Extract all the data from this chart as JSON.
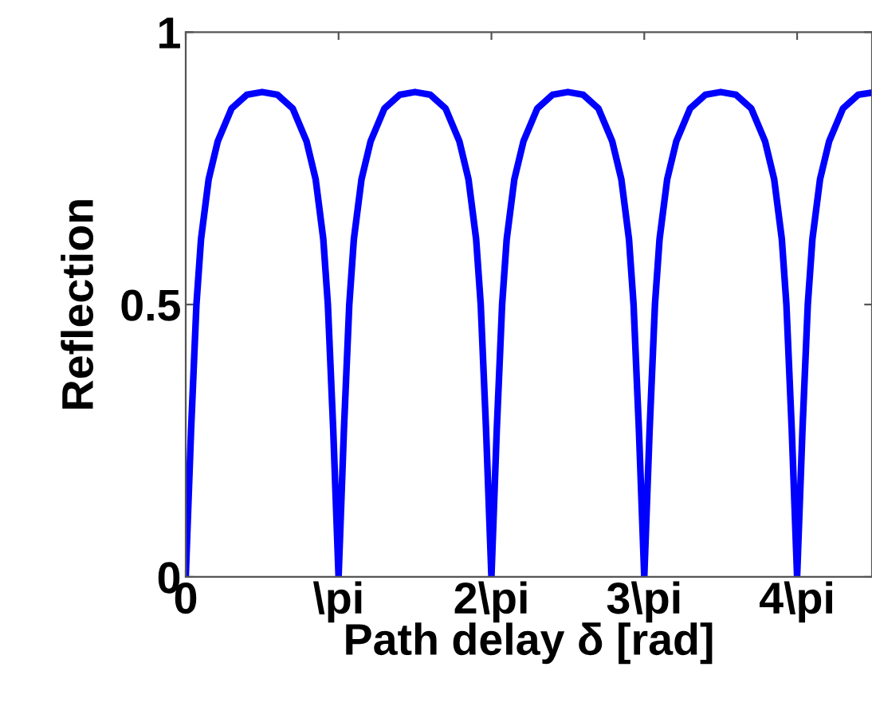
{
  "chart_data": {
    "type": "line",
    "xlabel": "Path delay δ [rad]",
    "ylabel": "Reflection",
    "xlim": [
      0,
      4.49
    ],
    "ylim": [
      0,
      1
    ],
    "xticks": [
      0,
      {
        "value": 1,
        "label": "\\pi"
      },
      {
        "value": 2,
        "label": "2\\pi"
      },
      {
        "value": 3,
        "label": "3\\pi"
      },
      {
        "value": 4,
        "label": "4\\pi"
      }
    ],
    "yticks": [
      0,
      0.5,
      1
    ],
    "grid": false,
    "marker": "none",
    "line_style": "solid",
    "series": [
      {
        "color": "#0000ff",
        "x": [
          0,
          0.035,
          0.07,
          0.1,
          0.15,
          0.21,
          0.3,
          0.4,
          0.5,
          0.6,
          0.7,
          0.79,
          0.85,
          0.9,
          0.93,
          0.965,
          1,
          1.035,
          1.07,
          1.1,
          1.15,
          1.21,
          1.3,
          1.4,
          1.5,
          1.6,
          1.7,
          1.79,
          1.85,
          1.9,
          1.93,
          1.965,
          2,
          2.035,
          2.07,
          2.1,
          2.15,
          2.21,
          2.3,
          2.4,
          2.5,
          2.6,
          2.7,
          2.79,
          2.85,
          2.9,
          2.93,
          2.965,
          3,
          3.035,
          3.07,
          3.1,
          3.15,
          3.21,
          3.3,
          3.4,
          3.5,
          3.6,
          3.7,
          3.79,
          3.85,
          3.9,
          3.93,
          3.965,
          4,
          4.035,
          4.07,
          4.1,
          4.15,
          4.21,
          4.3,
          4.4,
          4.49
        ],
        "values": [
          0,
          0.27,
          0.5,
          0.62,
          0.73,
          0.8,
          0.86,
          0.885,
          0.89,
          0.885,
          0.86,
          0.8,
          0.73,
          0.62,
          0.5,
          0.27,
          0,
          0.27,
          0.5,
          0.62,
          0.73,
          0.8,
          0.86,
          0.885,
          0.89,
          0.885,
          0.86,
          0.8,
          0.73,
          0.62,
          0.5,
          0.27,
          0,
          0.27,
          0.5,
          0.62,
          0.73,
          0.8,
          0.86,
          0.885,
          0.89,
          0.885,
          0.86,
          0.8,
          0.73,
          0.62,
          0.5,
          0.27,
          0,
          0.27,
          0.5,
          0.62,
          0.73,
          0.8,
          0.86,
          0.885,
          0.89,
          0.885,
          0.86,
          0.8,
          0.73,
          0.62,
          0.5,
          0.27,
          0,
          0.27,
          0.5,
          0.62,
          0.73,
          0.8,
          0.86,
          0.885,
          0.889
        ]
      }
    ]
  }
}
